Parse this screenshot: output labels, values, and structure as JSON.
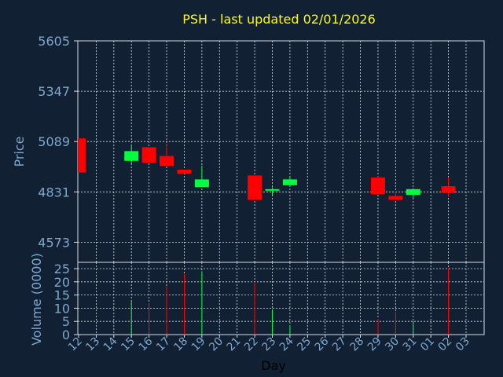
{
  "chart_data": {
    "type": "candlestick",
    "title": "PSH - last updated 02/01/2026",
    "price_panel": {
      "ylabel": "Price",
      "ylim": [
        4470,
        5605
      ],
      "yticks": [
        "5605",
        "5347",
        "5089",
        "4831",
        "4573"
      ],
      "ytick_values": [
        5605,
        5347,
        5089,
        4831,
        4573
      ]
    },
    "volume_panel": {
      "ylabel": "Volume (0000)",
      "ylim": [
        0,
        25
      ],
      "yticks": [
        "25",
        "20",
        "15",
        "10",
        "5",
        "0"
      ],
      "ytick_values": [
        25,
        20,
        15,
        10,
        5,
        0
      ]
    },
    "xlabel": "Day",
    "x_labels": [
      "12",
      "13",
      "14",
      "15",
      "16",
      "17",
      "18",
      "19",
      "20",
      "21",
      "22",
      "23",
      "24",
      "25",
      "26",
      "27",
      "28",
      "29",
      "30",
      "31",
      "01",
      "02",
      "03"
    ],
    "candles": [
      {
        "day": "12",
        "open": 5105,
        "high": 5105,
        "low": 4930,
        "close": 4930,
        "volume": 0
      },
      {
        "day": "15",
        "open": 4990,
        "high": 5070,
        "low": 4970,
        "close": 5040,
        "volume": 13
      },
      {
        "day": "16",
        "open": 5060,
        "high": 5060,
        "low": 4980,
        "close": 4980,
        "volume": 12
      },
      {
        "day": "17",
        "open": 5015,
        "high": 5070,
        "low": 4965,
        "close": 4965,
        "volume": 18
      },
      {
        "day": "18",
        "open": 4945,
        "high": 4945,
        "low": 4925,
        "close": 4925,
        "volume": 23
      },
      {
        "day": "19",
        "open": 4855,
        "high": 4965,
        "low": 4855,
        "close": 4895,
        "volume": 24
      },
      {
        "day": "22",
        "open": 4915,
        "high": 4915,
        "low": 4790,
        "close": 4790,
        "volume": 20
      },
      {
        "day": "23",
        "open": 4840,
        "high": 4855,
        "low": 4815,
        "close": 4845,
        "volume": 9.5
      },
      {
        "day": "24",
        "open": 4865,
        "high": 4905,
        "low": 4860,
        "close": 4895,
        "volume": 3.5
      },
      {
        "day": "29",
        "open": 4905,
        "high": 4910,
        "low": 4820,
        "close": 4820,
        "volume": 6
      },
      {
        "day": "30",
        "open": 4810,
        "high": 4835,
        "low": 4790,
        "close": 4790,
        "volume": 8.5
      },
      {
        "day": "31",
        "open": 4815,
        "high": 4850,
        "low": 4800,
        "close": 4845,
        "volume": 5
      },
      {
        "day": "02",
        "open": 4860,
        "high": 4905,
        "low": 4805,
        "close": 4825,
        "volume": 25
      }
    ],
    "grid": true,
    "colors": {
      "up": "#00ff3c",
      "down": "#ff0000",
      "background": "#112033",
      "plot_bg": "#112033",
      "grid": "#d7dde4",
      "title": "#ffff00",
      "axis_text": "#7ea7cc",
      "xlabel": "#000000"
    }
  }
}
